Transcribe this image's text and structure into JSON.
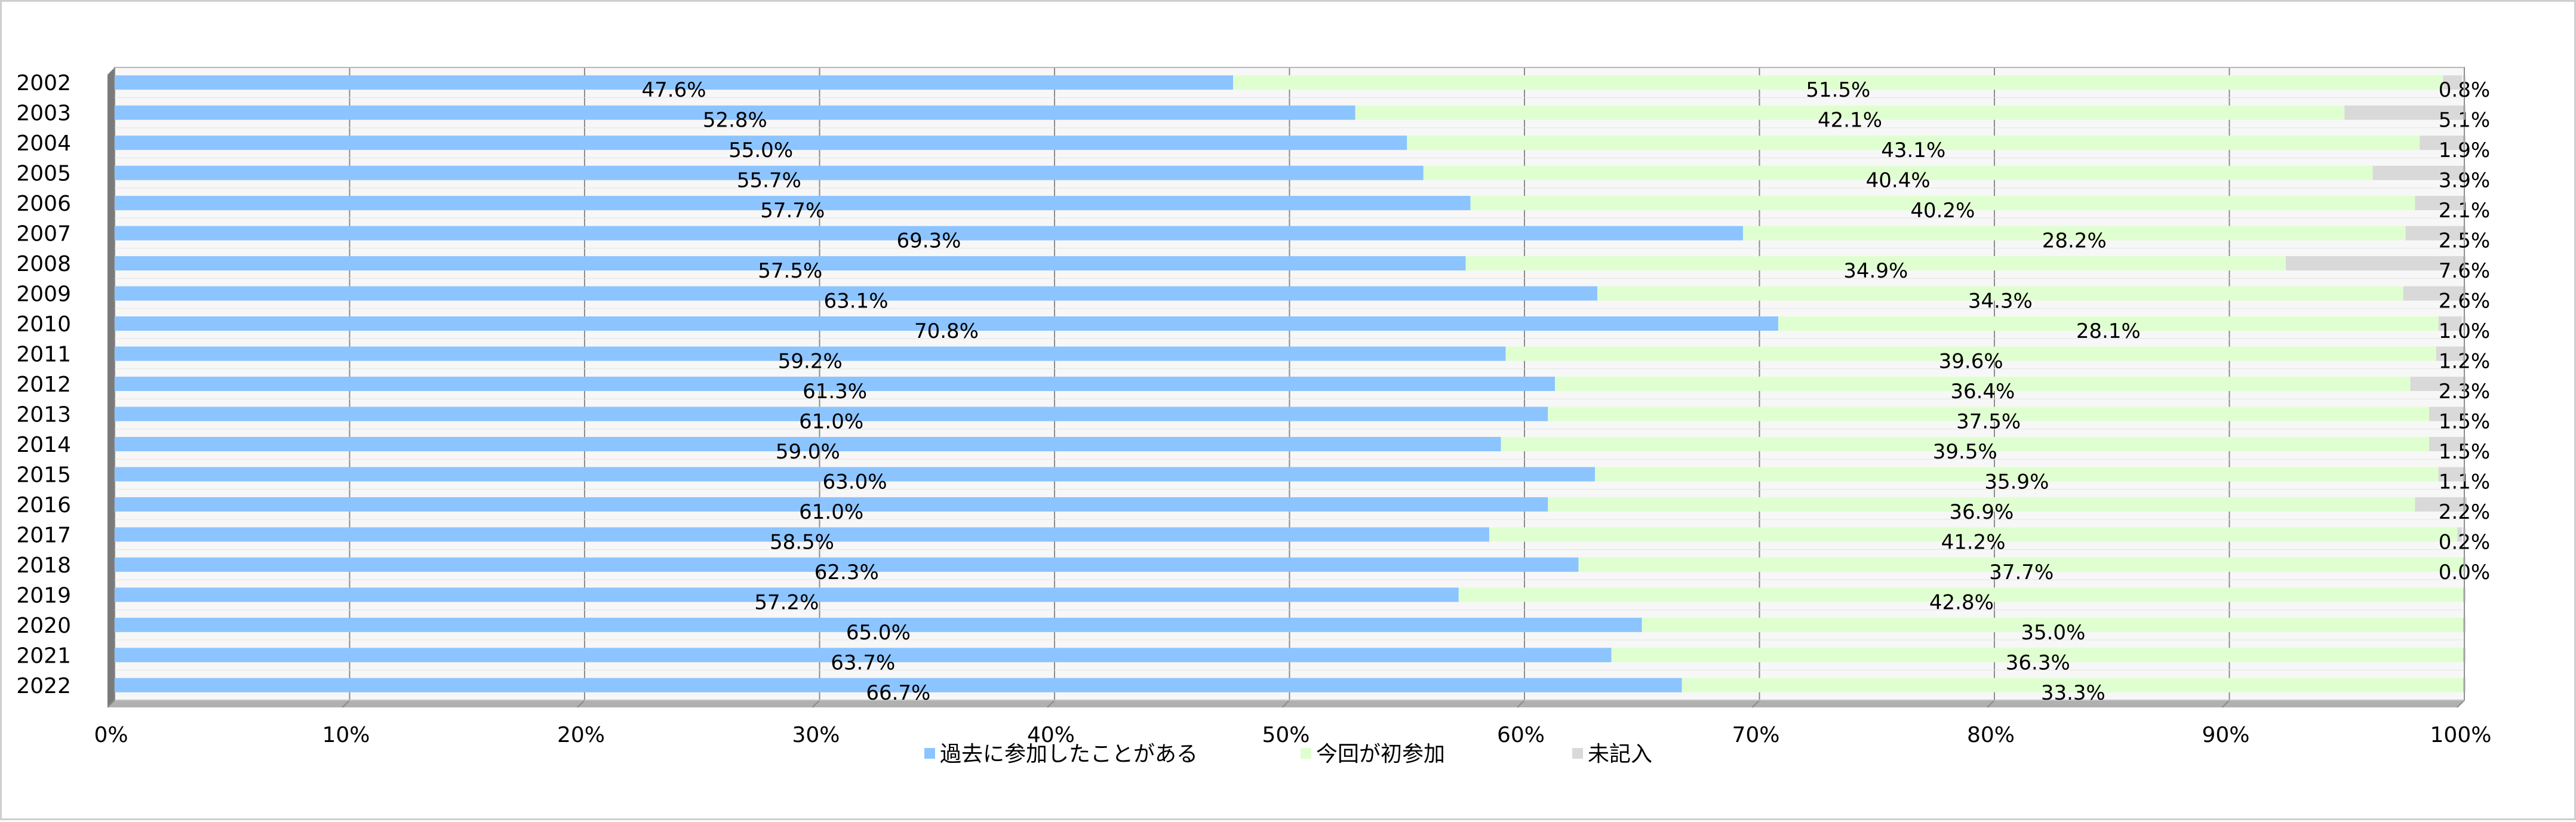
{
  "chart_data": {
    "type": "bar",
    "orientation": "horizontal",
    "stacked": "percent",
    "categories": [
      "2002",
      "2003",
      "2004",
      "2005",
      "2006",
      "2007",
      "2008",
      "2009",
      "2010",
      "2011",
      "2012",
      "2013",
      "2014",
      "2015",
      "2016",
      "2017",
      "2018",
      "2019",
      "2020",
      "2021",
      "2022"
    ],
    "series": [
      {
        "name": "過去に参加したことがある",
        "color": "#8cc4ff",
        "values": [
          47.6,
          52.8,
          55.0,
          55.7,
          57.7,
          69.3,
          57.5,
          63.1,
          70.8,
          59.2,
          61.3,
          61.0,
          59.0,
          63.0,
          61.0,
          58.5,
          62.3,
          57.2,
          65.0,
          63.7,
          66.7
        ],
        "labels": [
          "47.6%",
          "52.8%",
          "55.0%",
          "55.7%",
          "57.7%",
          "69.3%",
          "57.5%",
          "63.1%",
          "70.8%",
          "59.2%",
          "61.3%",
          "61.0%",
          "59.0%",
          "63.0%",
          "61.0%",
          "58.5%",
          "62.3%",
          "57.2%",
          "65.0%",
          "63.7%",
          "66.7%"
        ]
      },
      {
        "name": "今回が初参加",
        "color": "#e0ffd0",
        "values": [
          51.5,
          42.1,
          43.1,
          40.4,
          40.2,
          28.2,
          34.9,
          34.3,
          28.1,
          39.6,
          36.4,
          37.5,
          39.5,
          35.9,
          36.9,
          41.2,
          37.7,
          42.8,
          35.0,
          36.3,
          33.3
        ],
        "labels": [
          "51.5%",
          "42.1%",
          "43.1%",
          "40.4%",
          "40.2%",
          "28.2%",
          "34.9%",
          "34.3%",
          "28.1%",
          "39.6%",
          "36.4%",
          "37.5%",
          "39.5%",
          "35.9%",
          "36.9%",
          "41.2%",
          "37.7%",
          "42.8%",
          "35.0%",
          "36.3%",
          "33.3%"
        ]
      },
      {
        "name": "未記入",
        "color": "#d9d9d9",
        "values": [
          0.8,
          5.1,
          1.9,
          3.9,
          2.1,
          2.5,
          7.6,
          2.6,
          1.0,
          1.2,
          2.3,
          1.5,
          1.5,
          1.1,
          2.2,
          0.2,
          0.0,
          0.0,
          0.0,
          0.0,
          0.0
        ],
        "labels": [
          "0.8%",
          "5.1%",
          "1.9%",
          "3.9%",
          "2.1%",
          "2.5%",
          "7.6%",
          "2.6%",
          "1.0%",
          "1.2%",
          "2.3%",
          "1.5%",
          "1.5%",
          "1.1%",
          "2.2%",
          "0.2%",
          "0.0%",
          "",
          "",
          "",
          ""
        ]
      }
    ],
    "xlim": [
      0,
      100
    ],
    "x_ticks": [
      "0%",
      "10%",
      "20%",
      "30%",
      "40%",
      "50%",
      "60%",
      "70%",
      "80%",
      "90%",
      "100%"
    ],
    "grid": true,
    "legend_position": "bottom",
    "title": "",
    "xlabel": "",
    "ylabel": ""
  }
}
